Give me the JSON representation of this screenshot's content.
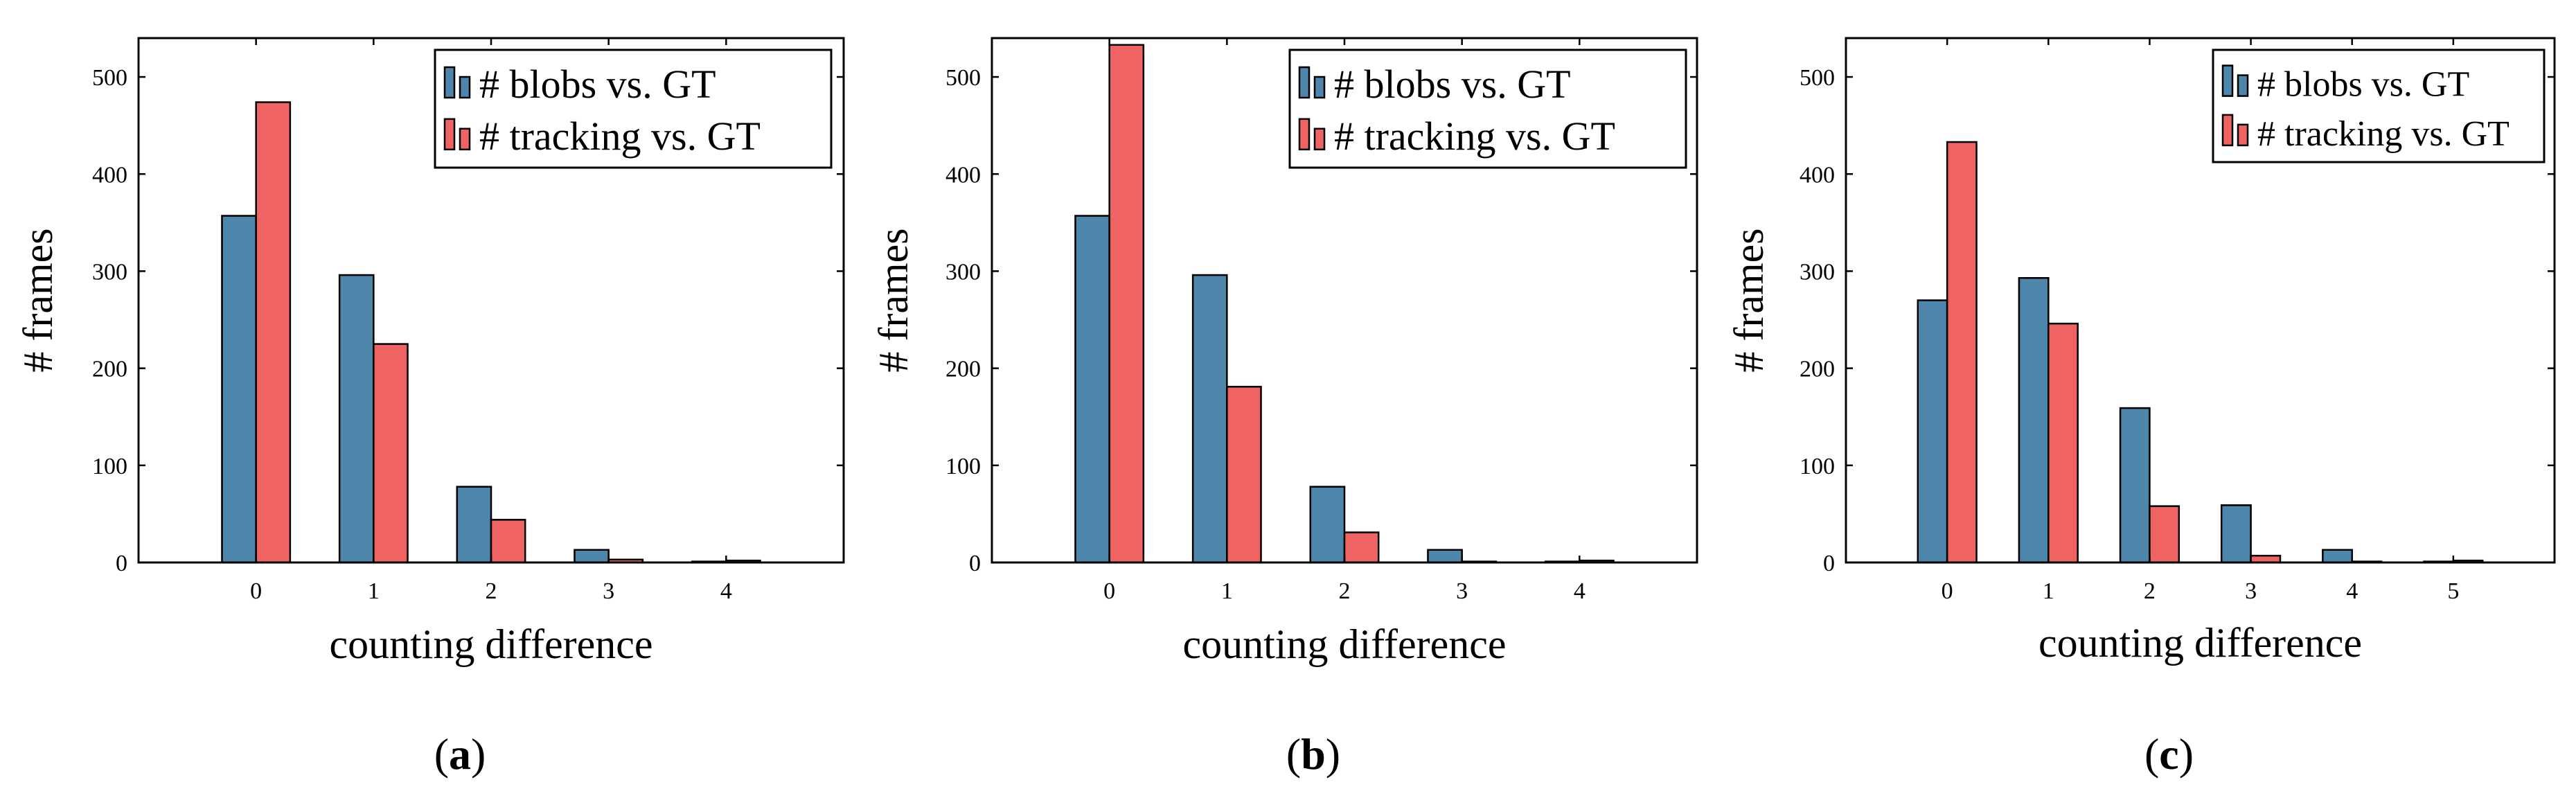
{
  "chart_data": [
    {
      "type": "bar",
      "panel": "a",
      "caption": "(a)",
      "categories": [
        "0",
        "1",
        "2",
        "3",
        "4"
      ],
      "series": [
        {
          "name": "# blobs vs. GT",
          "color": "#4e86ab",
          "values": [
            357,
            296,
            78,
            13,
            1
          ]
        },
        {
          "name": "# tracking vs. GT",
          "color": "#ef6363",
          "values": [
            474,
            225,
            44,
            3,
            2
          ]
        }
      ],
      "xlabel": "counting difference",
      "ylabel": "# frames",
      "ylim": [
        0,
        540
      ],
      "yticks": [
        0,
        100,
        200,
        300,
        400,
        500
      ],
      "legend": "top-right"
    },
    {
      "type": "bar",
      "panel": "b",
      "caption": "(b)",
      "categories": [
        "0",
        "1",
        "2",
        "3",
        "4"
      ],
      "series": [
        {
          "name": "# blobs vs. GT",
          "color": "#4e86ab",
          "values": [
            357,
            296,
            78,
            13,
            1
          ]
        },
        {
          "name": "# tracking vs. GT",
          "color": "#ef6363",
          "values": [
            533,
            181,
            31,
            1,
            2
          ]
        }
      ],
      "xlabel": "counting difference",
      "ylabel": "# frames",
      "ylim": [
        0,
        540
      ],
      "yticks": [
        0,
        100,
        200,
        300,
        400,
        500
      ],
      "legend": "top-right"
    },
    {
      "type": "bar",
      "panel": "c",
      "caption": "(c)",
      "categories": [
        "0",
        "1",
        "2",
        "3",
        "4",
        "5"
      ],
      "series": [
        {
          "name": "# blobs vs. GT",
          "color": "#4e86ab",
          "values": [
            270,
            293,
            159,
            59,
            13,
            1
          ]
        },
        {
          "name": "# tracking vs. GT",
          "color": "#ef6363",
          "values": [
            433,
            246,
            58,
            7,
            1,
            2
          ]
        }
      ],
      "xlabel": "counting difference",
      "ylabel": "# frames",
      "ylim": [
        0,
        540
      ],
      "yticks": [
        0,
        100,
        200,
        300,
        400,
        500
      ],
      "legend": "top-right"
    }
  ]
}
